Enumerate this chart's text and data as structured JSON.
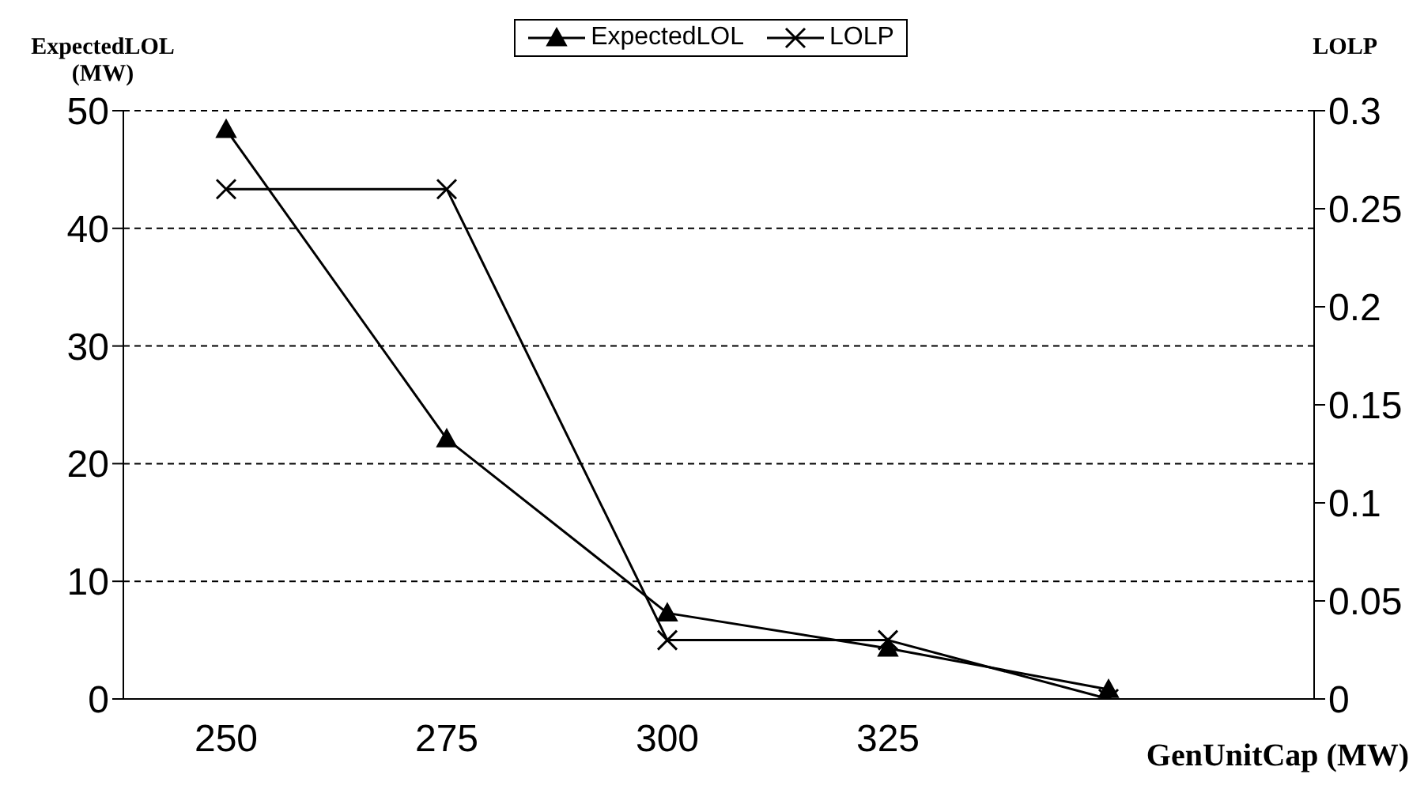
{
  "chart_data": {
    "type": "line",
    "xlabel": "GenUnitCap (MW)",
    "ylabel": "ExpectedLOL (MW)",
    "y2label": "LOLP",
    "categories": [
      "250",
      "275",
      "300",
      "325",
      null
    ],
    "series": [
      {
        "name": "ExpectedLOL",
        "color": "#000000",
        "marker": "triangle",
        "values": [
          48.4,
          22.1,
          7.3,
          4.3,
          0.8
        ]
      },
      {
        "name": "LOLP",
        "color": "#000000",
        "marker": "cross",
        "axis": "y2",
        "values": [
          0.26,
          0.26,
          0.03,
          0.03,
          0
        ]
      }
    ],
    "ylim": [
      0,
      50
    ],
    "yticks": [
      0,
      10,
      20,
      30,
      40,
      50
    ],
    "y2lim": [
      0,
      0.3
    ],
    "y2ticks": [
      0,
      0.05,
      0.1,
      0.15,
      0.2,
      0.25,
      0.3
    ],
    "grid": "y",
    "legend": "top",
    "line_style": "solid"
  }
}
